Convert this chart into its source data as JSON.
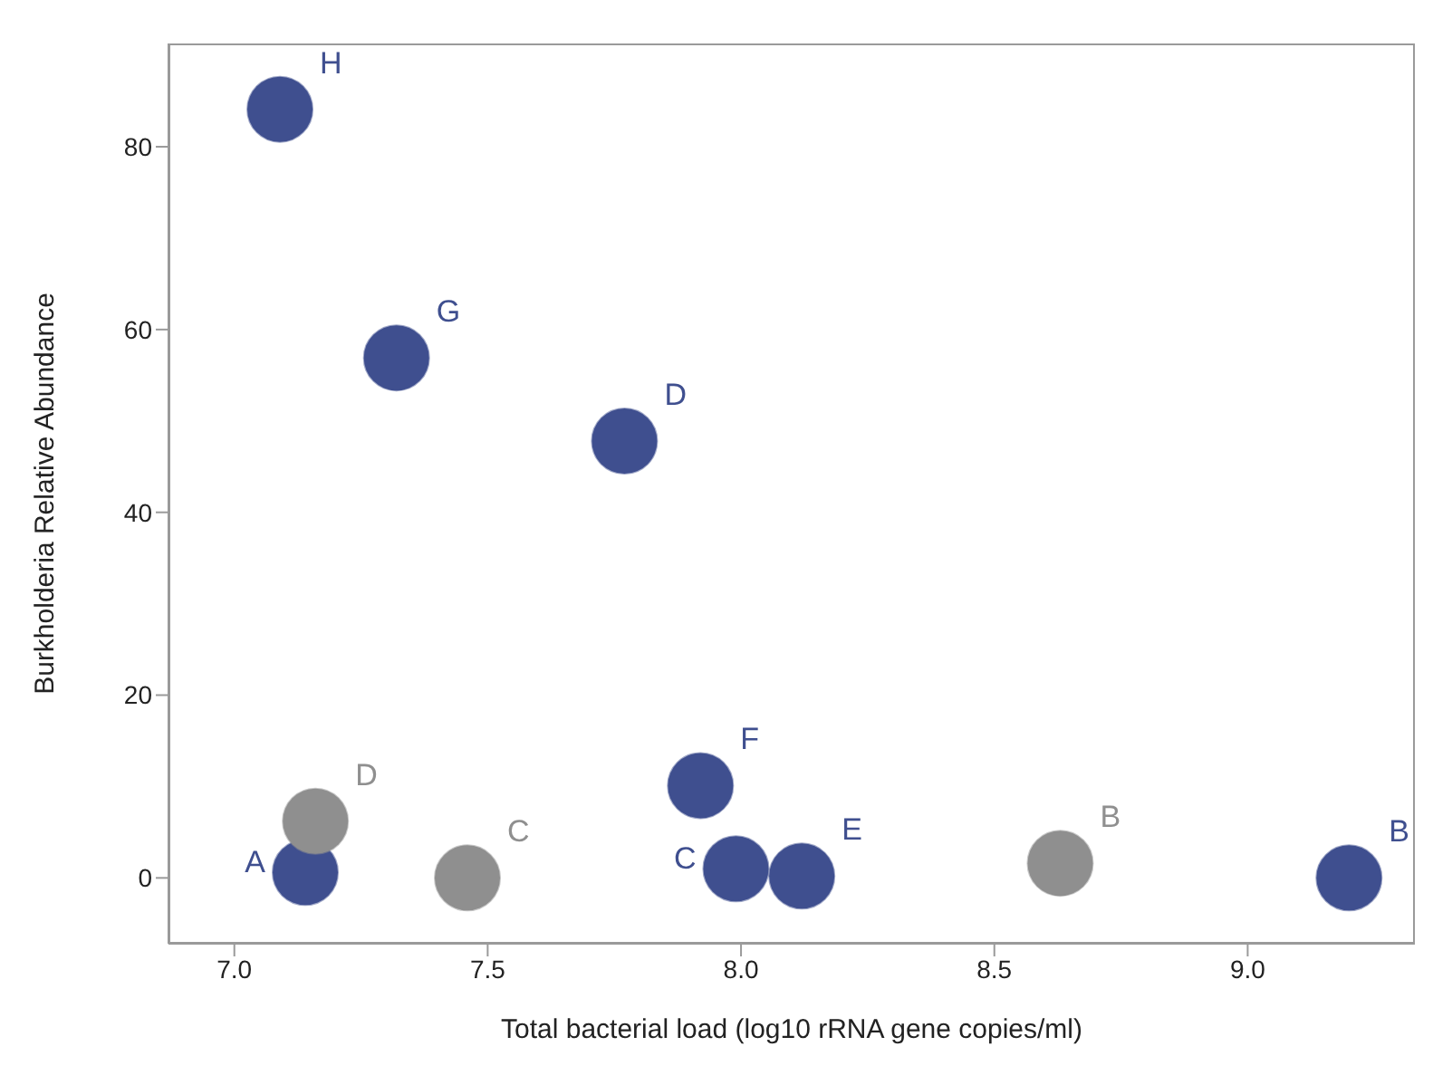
{
  "chart_data": {
    "type": "scatter",
    "xlabel": "Total bacterial load (log10 rRNA gene copies/ml)",
    "ylabel": "Burkholderia Relative Abundance",
    "xlim": [
      6.87,
      9.33
    ],
    "xticks": [
      {
        "value": 7,
        "label": "7.0"
      },
      {
        "value": 7.5,
        "label": "7.5"
      },
      {
        "value": 8,
        "label": "8.0"
      },
      {
        "value": 8.5,
        "label": "8.5"
      },
      {
        "value": 9,
        "label": "9.0"
      }
    ],
    "ylim": [
      -7.2,
      91.3
    ],
    "yticks": [
      0,
      20,
      40,
      60,
      80
    ],
    "marker": "circle",
    "series": [
      {
        "color": "#3f4f8f",
        "x": [
          7.09,
          7.32,
          7.77,
          7.92,
          7.14,
          7.99,
          8.12,
          9.2
        ],
        "values": [
          84.1,
          56.9,
          47.8,
          10.1,
          0.6,
          1.0,
          0.2,
          0
        ],
        "value_labels": [
          "H",
          "G",
          "D",
          "F",
          "A",
          "C",
          "E",
          "B"
        ]
      },
      {
        "color": "#8f8f8f",
        "x": [
          7.16,
          7.46,
          8.63
        ],
        "values": [
          6.2,
          0,
          1.6
        ],
        "value_labels": [
          "D",
          "C",
          "B"
        ]
      }
    ]
  }
}
